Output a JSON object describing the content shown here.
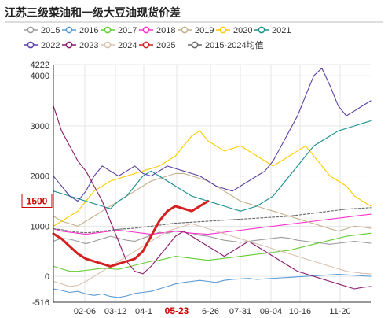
{
  "chart_data": {
    "type": "line",
    "title": "江苏三级菜油和一级大豆油现货价差",
    "ylim": [
      -516,
      4222
    ],
    "y_ticks": [
      -516,
      0,
      1000,
      2000,
      3000,
      4000,
      4222
    ],
    "x_ticks": [
      "02-06",
      "03-12",
      "04-1",
      "05-23",
      "6-26",
      "07-31",
      "09-04",
      "10-16",
      "11-20"
    ],
    "x_tick_highlight": "05-23",
    "annotation": "1500",
    "grid": true,
    "legend_position": "top",
    "series": [
      {
        "name": "2015",
        "color": "#9b9b9b",
        "dashed": false,
        "width": 1.1,
        "values": [
          700,
          760,
          740,
          700,
          650,
          700,
          750,
          800,
          760,
          720,
          700,
          760,
          820,
          880,
          860,
          900,
          880,
          860,
          820,
          800,
          760,
          720,
          700,
          680,
          700,
          720,
          740,
          760,
          780,
          760,
          720,
          700,
          680,
          660,
          640,
          660,
          680,
          700,
          680,
          660
        ]
      },
      {
        "name": "2016",
        "color": "#5b9bd5",
        "dashed": false,
        "width": 1.1,
        "values": [
          -250,
          -280,
          -320,
          -300,
          -350,
          -380,
          -350,
          -400,
          -420,
          -390,
          -340,
          -320,
          -300,
          -250,
          -200,
          -150,
          -120,
          -100,
          -80,
          -100,
          -120,
          -80,
          -60,
          -50,
          -40,
          -60,
          -50,
          -40,
          -30,
          -20,
          -10,
          0,
          10,
          20,
          30,
          40,
          30,
          20,
          10,
          0
        ]
      },
      {
        "name": "2017",
        "color": "#66cc33",
        "dashed": false,
        "width": 1.1,
        "values": [
          200,
          150,
          100,
          100,
          120,
          140,
          160,
          150,
          140,
          180,
          220,
          260,
          300,
          320,
          360,
          400,
          380,
          360,
          340,
          320,
          340,
          360,
          380,
          400,
          420,
          440,
          460,
          480,
          500,
          520,
          560,
          600,
          640,
          680,
          720,
          760,
          800,
          820,
          840,
          860
        ]
      },
      {
        "name": "2018",
        "color": "#ff33cc",
        "dashed": false,
        "width": 1.1,
        "values": [
          950,
          900,
          880,
          860,
          840,
          860,
          880,
          900,
          920,
          900,
          880,
          860,
          840,
          860,
          880,
          900,
          880,
          860,
          850,
          840,
          860,
          880,
          900,
          920,
          940,
          960,
          980,
          1000,
          1020,
          1040,
          1060,
          1080,
          1100,
          1120,
          1140,
          1160,
          1180,
          1200,
          1220,
          1240
        ]
      },
      {
        "name": "2019",
        "color": "#c4b08a",
        "dashed": false,
        "width": 1.1,
        "values": [
          1200,
          1100,
          1050,
          1000,
          1100,
          1200,
          1300,
          1400,
          1500,
          1600,
          1700,
          1800,
          1900,
          1950,
          2000,
          2050,
          2050,
          2000,
          1950,
          1900,
          1800,
          1700,
          1600,
          1500,
          1450,
          1400,
          1350,
          1300,
          1250,
          1200,
          1150,
          1100,
          1050,
          1000,
          950,
          900,
          950,
          1000,
          980,
          960
        ]
      },
      {
        "name": "2020",
        "color": "#ffcc00",
        "dashed": false,
        "width": 1.1,
        "values": [
          1000,
          1100,
          1200,
          1300,
          1500,
          1700,
          1800,
          1900,
          1950,
          2000,
          2050,
          2100,
          2150,
          2200,
          2300,
          2400,
          2600,
          2800,
          2900,
          2700,
          2600,
          2500,
          2550,
          2600,
          2500,
          2400,
          2300,
          2200,
          2300,
          2400,
          2500,
          2600,
          2400,
          2200,
          2000,
          1900,
          1800,
          1600,
          1500,
          1400
        ]
      },
      {
        "name": "2021",
        "color": "#1a9090",
        "dashed": false,
        "width": 1.1,
        "values": [
          1700,
          1650,
          1600,
          1550,
          1500,
          1450,
          1400,
          1350,
          1500,
          1600,
          1800,
          2000,
          2100,
          2000,
          1900,
          1800,
          1700,
          1600,
          1550,
          1500,
          1450,
          1400,
          1350,
          1300,
          1350,
          1400,
          1500,
          1600,
          1800,
          2000,
          2200,
          2400,
          2600,
          2700,
          2800,
          2900,
          2950,
          3000,
          3050,
          3100
        ]
      },
      {
        "name": "2022",
        "color": "#5b3fa8",
        "dashed": false,
        "width": 1.1,
        "values": [
          2000,
          1800,
          1600,
          1500,
          1700,
          2000,
          2200,
          2100,
          2000,
          2100,
          2200,
          2050,
          2000,
          2100,
          2200,
          2150,
          2100,
          2050,
          2000,
          1900,
          1800,
          1750,
          1700,
          1800,
          1900,
          2000,
          2100,
          2300,
          2600,
          2900,
          3200,
          3600,
          4000,
          4150,
          3800,
          3400,
          3200,
          3300,
          3400,
          3500
        ]
      },
      {
        "name": "2023",
        "color": "#8b1a6b",
        "dashed": false,
        "width": 1.1,
        "values": [
          3400,
          2900,
          2600,
          2300,
          2100,
          1800,
          1500,
          1100,
          700,
          300,
          100,
          50,
          200,
          400,
          600,
          800,
          900,
          800,
          700,
          600,
          500,
          400,
          500,
          600,
          700,
          600,
          500,
          400,
          300,
          200,
          100,
          50,
          0,
          -50,
          -100,
          -150,
          -200,
          -250,
          -220,
          -200
        ]
      },
      {
        "name": "2024",
        "color": "#d9c2b0",
        "dashed": false,
        "width": 1.1,
        "values": [
          -100,
          -150,
          -200,
          -180,
          -100,
          0,
          100,
          200,
          300,
          400,
          500,
          600,
          700,
          800,
          900,
          950,
          1000,
          1050,
          1000,
          950,
          900,
          850,
          800,
          750,
          700,
          650,
          600,
          550,
          500,
          450,
          400,
          350,
          300,
          250,
          200,
          150,
          100,
          80,
          60,
          50
        ]
      },
      {
        "name": "2025",
        "color": "#d42020",
        "dashed": false,
        "width": 3,
        "values": [
          850,
          750,
          600,
          450,
          350,
          300,
          250,
          200,
          250,
          300,
          350,
          500,
          800,
          1100,
          1300,
          1400,
          1350,
          1300,
          1400,
          1500
        ]
      },
      {
        "name": "2015-2024均值",
        "color": "#666666",
        "dashed": true,
        "width": 1.1,
        "values": [
          950,
          930,
          900,
          880,
          870,
          880,
          900,
          920,
          940,
          950,
          960,
          980,
          1000,
          1020,
          1040,
          1060,
          1070,
          1080,
          1090,
          1100,
          1110,
          1120,
          1130,
          1140,
          1150,
          1160,
          1170,
          1180,
          1190,
          1200,
          1220,
          1240,
          1260,
          1280,
          1300,
          1320,
          1340,
          1350,
          1360,
          1370
        ]
      }
    ]
  }
}
